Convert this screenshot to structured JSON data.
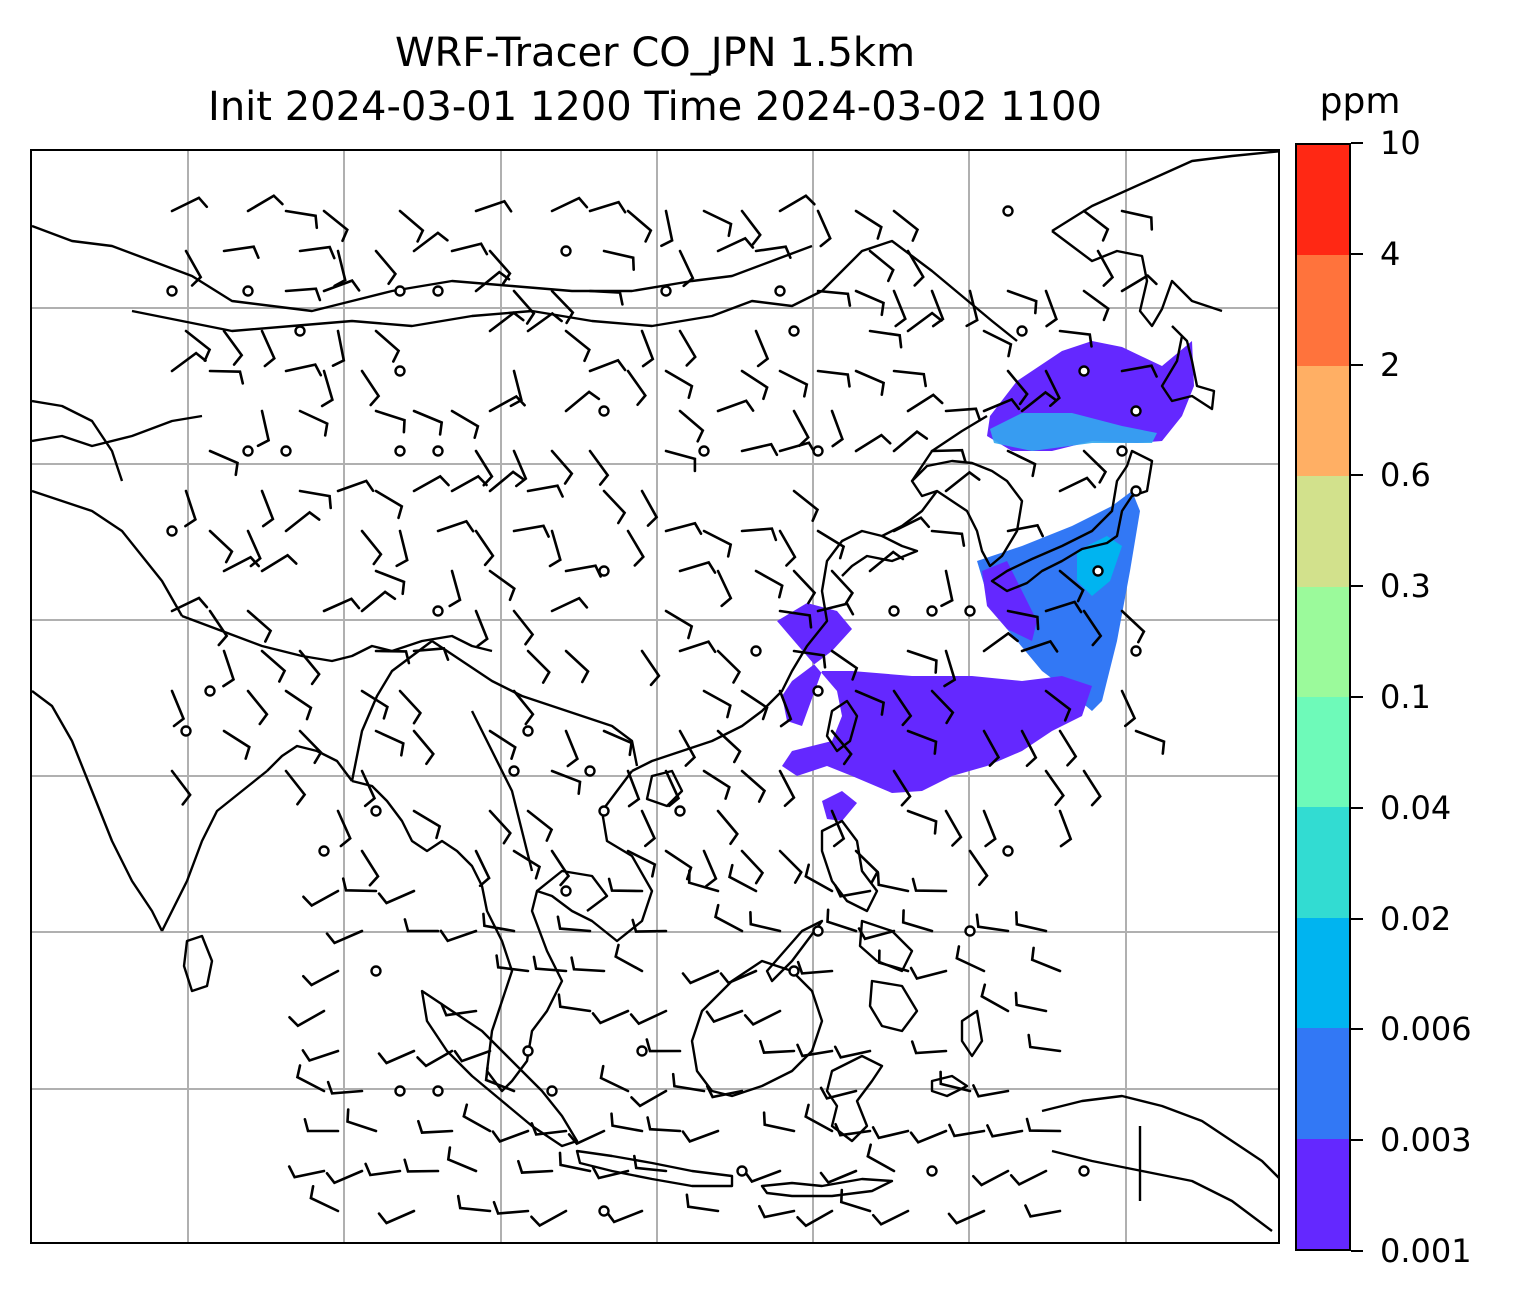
{
  "title": {
    "line1": "WRF-Tracer CO_JPN 1.5km",
    "line2": "Init 2024-03-01 1200 Time 2024-03-02 1100"
  },
  "map": {
    "region": "East and Southeast Asia",
    "gridlines": true,
    "grid_color": "#b0b0b0",
    "coastline_color": "#000000",
    "features": [
      "coastlines",
      "country borders",
      "wind barbs",
      "calm-wind circles",
      "tracer concentration shading"
    ]
  },
  "colorbar": {
    "unit": "ppm",
    "levels": [
      "0.001",
      "0.003",
      "0.006",
      "0.02",
      "0.04",
      "0.1",
      "0.3",
      "0.6",
      "2",
      "4",
      "10"
    ],
    "colors": [
      "#6428ff",
      "#3278f5",
      "#00b4f0",
      "#32dcd2",
      "#6efab9",
      "#9bfa9b",
      "#d2e18c",
      "#ffaf64",
      "#ff733c",
      "#ff2814"
    ]
  }
}
